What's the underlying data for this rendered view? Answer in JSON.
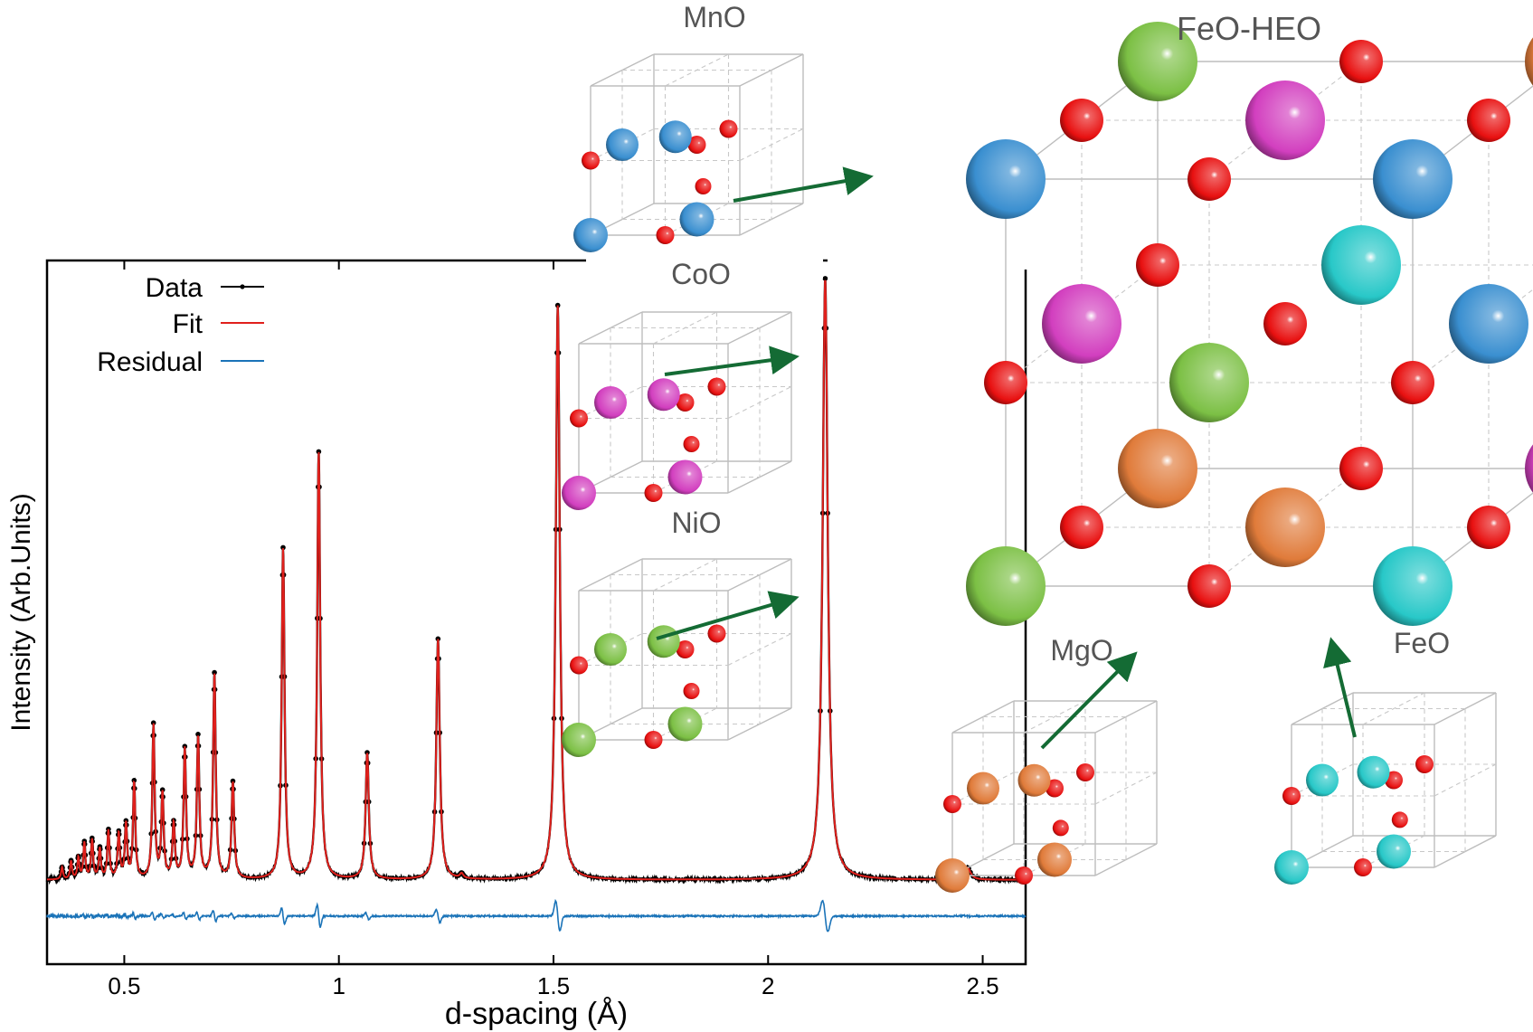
{
  "chart_data": {
    "type": "line",
    "xlabel": "d-spacing (Å)",
    "ylabel": "Intensity (Arb.Units)",
    "xlim": [
      0.32,
      2.6
    ],
    "ylim": [
      -0.12,
      1.05
    ],
    "x_ticks": [
      0.5,
      1,
      1.5,
      2,
      2.5
    ],
    "x_tick_labels": [
      "0.5",
      "1",
      "1.5",
      "2",
      "2.5"
    ],
    "grid": false,
    "legend_position": "top-left",
    "legend": [
      {
        "label": "Data",
        "color": "#000000"
      },
      {
        "label": "Fit",
        "color": "#e0201c"
      },
      {
        "label": "Residual",
        "color": "#1a73b8"
      }
    ],
    "background_level": 0.02,
    "residual_offset": -0.04,
    "peaks": [
      {
        "d": 2.133,
        "intensity": 1.0
      },
      {
        "d": 1.51,
        "intensity": 0.955
      },
      {
        "d": 0.953,
        "intensity": 0.71
      },
      {
        "d": 0.87,
        "intensity": 0.55
      },
      {
        "d": 1.231,
        "intensity": 0.4
      },
      {
        "d": 0.71,
        "intensity": 0.34
      },
      {
        "d": 1.066,
        "intensity": 0.21
      },
      {
        "d": 0.672,
        "intensity": 0.235
      },
      {
        "d": 0.568,
        "intensity": 0.255
      },
      {
        "d": 0.641,
        "intensity": 0.215
      },
      {
        "d": 0.753,
        "intensity": 0.16
      },
      {
        "d": 0.589,
        "intensity": 0.14
      },
      {
        "d": 0.523,
        "intensity": 0.16
      },
      {
        "d": 0.504,
        "intensity": 0.09
      },
      {
        "d": 0.615,
        "intensity": 0.09
      },
      {
        "d": 0.487,
        "intensity": 0.075
      },
      {
        "d": 0.463,
        "intensity": 0.08
      },
      {
        "d": 0.443,
        "intensity": 0.05
      },
      {
        "d": 0.425,
        "intensity": 0.065
      },
      {
        "d": 0.407,
        "intensity": 0.06
      },
      {
        "d": 0.393,
        "intensity": 0.035
      },
      {
        "d": 0.376,
        "intensity": 0.03
      },
      {
        "d": 0.355,
        "intensity": 0.02
      },
      {
        "d": 2.465,
        "intensity": 0.02
      },
      {
        "d": 1.286,
        "intensity": 0.008
      }
    ]
  },
  "structures": {
    "main": {
      "title": "FeO-HEO"
    },
    "insets": [
      {
        "name": "MnO",
        "cation_color": "#3a8fd0"
      },
      {
        "name": "CoO",
        "cation_color": "#d23fbf"
      },
      {
        "name": "NiO",
        "cation_color": "#7cc045"
      },
      {
        "name": "MgO",
        "cation_color": "#e07b3a"
      },
      {
        "name": "FeO",
        "cation_color": "#28c8c8"
      }
    ],
    "oxygen_color": "#e81010",
    "arrow_color": "#146b34"
  }
}
